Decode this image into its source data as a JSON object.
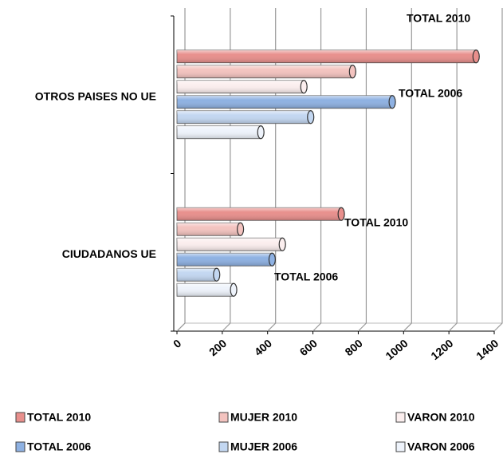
{
  "chart_data": {
    "type": "bar",
    "orientation": "horizontal",
    "categories": [
      "CIUDADANOS  UE",
      "OTROS PAISES NO UE"
    ],
    "series": [
      {
        "name": "TOTAL 2010",
        "color": "#e88f8c",
        "values": [
          725,
          1320
        ]
      },
      {
        "name": "MUJER 2010",
        "color": "#f3c3bf",
        "values": [
          280,
          775
        ]
      },
      {
        "name": "VARON 2010",
        "color": "#fbeeee",
        "values": [
          465,
          560
        ]
      },
      {
        "name": "TOTAL 2006",
        "color": "#8eb1e2",
        "values": [
          420,
          950
        ]
      },
      {
        "name": "MUJER 2006",
        "color": "#c3d7f1",
        "values": [
          175,
          590
        ]
      },
      {
        "name": "VARON 2006",
        "color": "#eef3fb",
        "values": [
          250,
          370
        ]
      }
    ],
    "xlim": [
      0,
      1400
    ],
    "xticks": [
      0,
      200,
      400,
      600,
      800,
      1000,
      1200,
      1400
    ],
    "grid": true,
    "annotations": [
      "TOTAL 2010",
      "TOTAL 2006",
      "TOTAL 2010",
      "TOTAL 2006"
    ],
    "legend": "bottom"
  }
}
